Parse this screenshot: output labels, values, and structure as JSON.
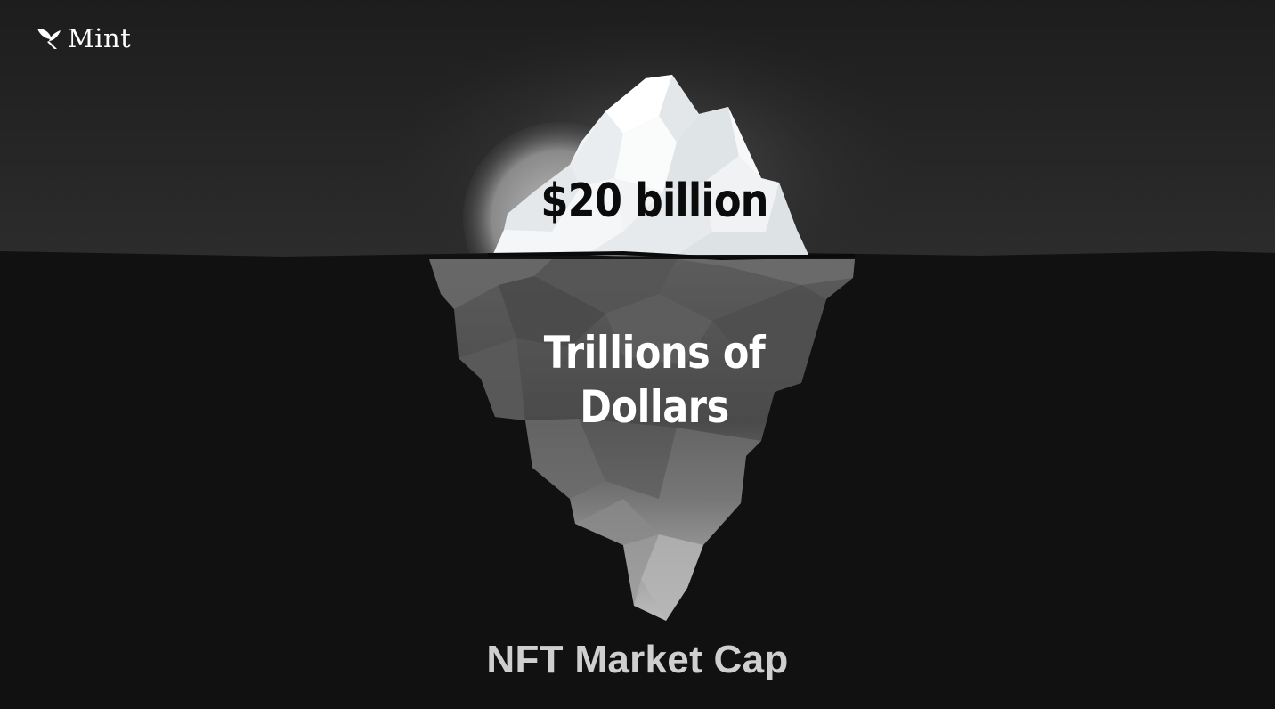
{
  "brand": {
    "name": "Mint",
    "logo_icon": "leaf-icon"
  },
  "iceberg": {
    "above_water_label": "$20 billion",
    "below_water_label_line1": "Trillions of",
    "below_water_label_line2": "Dollars"
  },
  "caption": "NFT Market Cap",
  "colors": {
    "sky_top": "#1e1e1e",
    "sky_horizon": "#2b2b2b",
    "water": "#111111",
    "ice": "#f2f4f5",
    "caption_text": "#cfcfcf"
  }
}
